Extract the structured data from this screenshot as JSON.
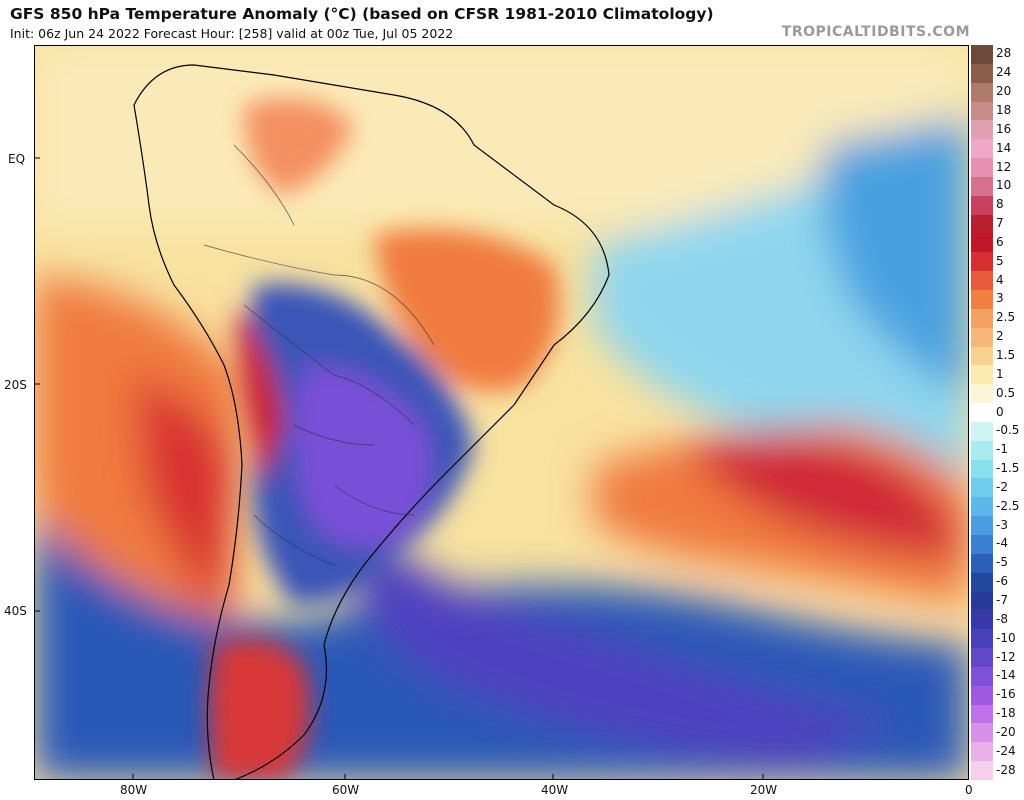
{
  "header": {
    "title": "GFS 850 hPa Temperature Anomaly (°C) (based on CFSR 1981-2010 Climatology)",
    "subtitle": "Init: 06z Jun 24 2022   Forecast Hour: [258]   valid at 00z Tue, Jul 05 2022",
    "credit": "TROPICALTIDBITS.COM"
  },
  "axes": {
    "lat_labels": [
      "EQ",
      "20S",
      "40S"
    ],
    "lon_labels": [
      "80W",
      "60W",
      "40W",
      "20W",
      "0"
    ]
  },
  "colorbar": {
    "labels": [
      "28",
      "24",
      "20",
      "18",
      "16",
      "14",
      "12",
      "10",
      "8",
      "7",
      "6",
      "5",
      "4",
      "3",
      "2.5",
      "2",
      "1.5",
      "1",
      "0.5",
      "0",
      "-0.5",
      "-1",
      "-1.5",
      "-2",
      "-2.5",
      "-3",
      "-4",
      "-5",
      "-6",
      "-7",
      "-8",
      "-10",
      "-12",
      "-14",
      "-16",
      "-18",
      "-20",
      "-24",
      "-28"
    ],
    "colors": [
      "#6e4a3a",
      "#8b5e4a",
      "#b07a6a",
      "#c98a8a",
      "#e0a0b0",
      "#f0a8c8",
      "#e890b0",
      "#d87090",
      "#c84060",
      "#b82030",
      "#c01828",
      "#d83030",
      "#e85a3a",
      "#f08040",
      "#f4a060",
      "#f6b878",
      "#f8d090",
      "#faeab0",
      "#fcf6d8",
      "#ffffff",
      "#d0f4f4",
      "#a8ecf0",
      "#88e0ee",
      "#70ccee",
      "#5cb8ea",
      "#4a9ee0",
      "#3a80d0",
      "#2a60b8",
      "#2248a0",
      "#2a3a98",
      "#3838a8",
      "#4840b8",
      "#6048c8",
      "#8050d8",
      "#a058e0",
      "#c070e8",
      "#d890e8",
      "#e8b0e8",
      "#f4d0ec"
    ]
  },
  "colors": {
    "ocean_neutral": "#f8e8a0",
    "land_outline": "#000000",
    "cold_core": "#7a50d8",
    "warm_core": "#d02838"
  }
}
